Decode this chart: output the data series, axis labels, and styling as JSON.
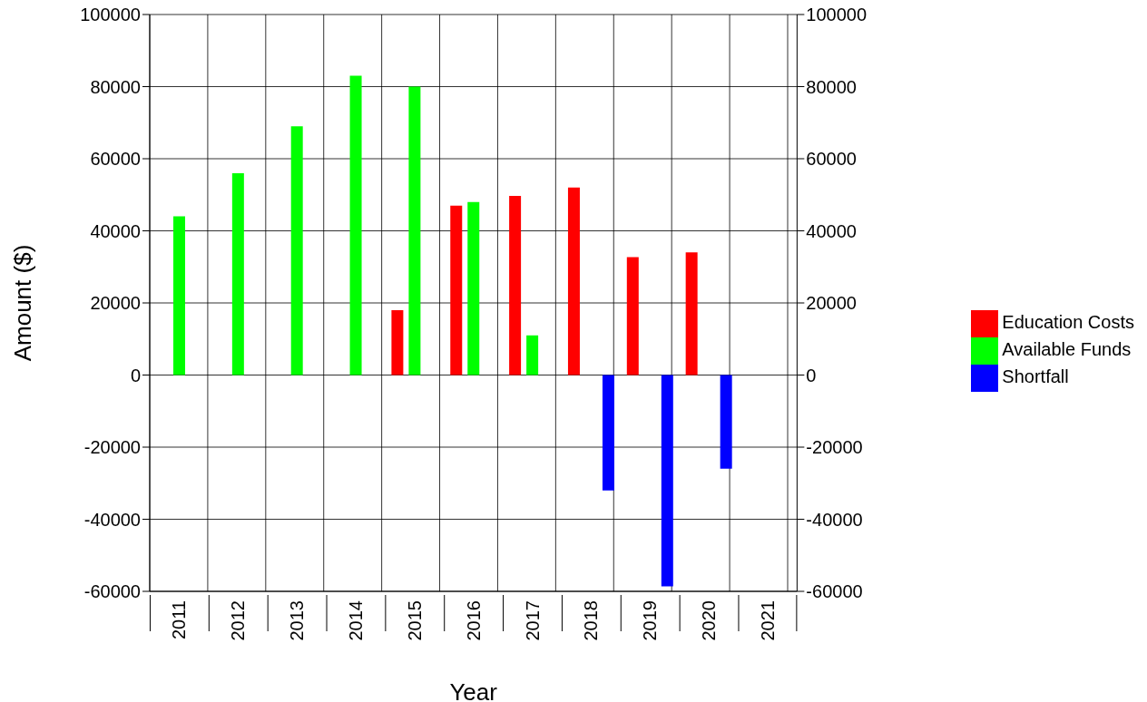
{
  "chart_data": {
    "type": "bar",
    "xlabel": "Year",
    "ylabel": "Amount ($)",
    "categories": [
      "2011",
      "2012",
      "2013",
      "2014",
      "2015",
      "2016",
      "2017",
      "2018",
      "2019",
      "2020",
      "2021"
    ],
    "series": [
      {
        "name": "Education Costs",
        "color": "#ff0000",
        "values": [
          0,
          0,
          0,
          0,
          18000,
          47000,
          49700,
          52000,
          32700,
          34000,
          0
        ]
      },
      {
        "name": "Available Funds",
        "color": "#00ff00",
        "values": [
          44000,
          56000,
          69000,
          83000,
          80000,
          48000,
          11000,
          0,
          0,
          0,
          0
        ]
      },
      {
        "name": "Shortfall",
        "color": "#0000ff",
        "values": [
          0,
          0,
          0,
          0,
          0,
          0,
          0,
          -32000,
          -58600,
          -26000,
          0
        ]
      }
    ],
    "ylim": [
      -60000,
      100000
    ],
    "yticks": [
      -60000,
      -40000,
      -20000,
      0,
      20000,
      40000,
      60000,
      80000,
      100000
    ],
    "y2lim": [
      -60000,
      100000
    ],
    "y2ticks": [
      -60000,
      -40000,
      -20000,
      0,
      20000,
      40000,
      60000,
      80000,
      100000
    ],
    "grid": true,
    "legend": "right"
  }
}
